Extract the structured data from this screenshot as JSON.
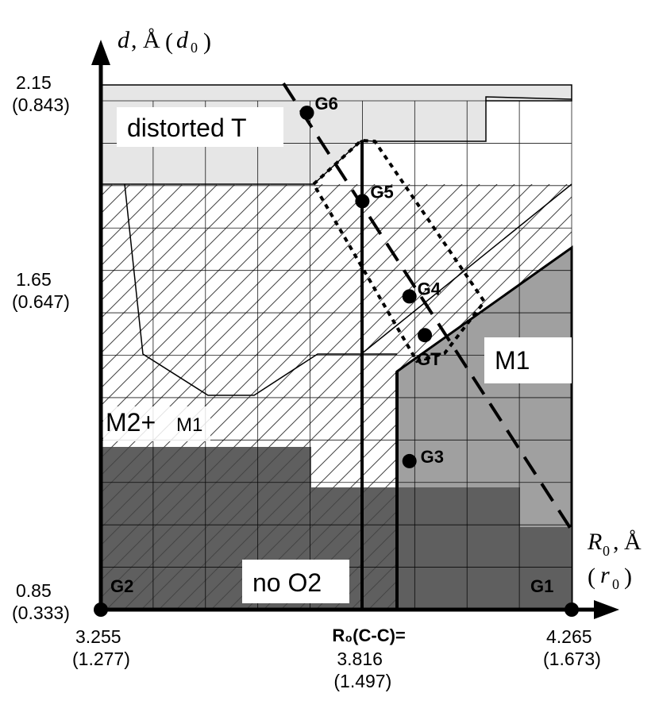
{
  "chart_data": {
    "type": "phase-diagram",
    "x_axis": {
      "label_symbol": "R",
      "label_sub": "0",
      "label_unit": "Å",
      "label_paren_symbol": "r",
      "label_paren_sub": "0",
      "range": [
        3.255,
        4.265
      ],
      "ticks": [
        {
          "value": 3.255,
          "label": "3.255",
          "label2": "(1.277)"
        },
        {
          "value": 3.816,
          "label": "3.816",
          "label2": "(1.497)",
          "prefix": "R₀(C-C)="
        },
        {
          "value": 4.265,
          "label": "4.265",
          "label2": "(1.673)"
        }
      ]
    },
    "y_axis": {
      "label_symbol": "d",
      "label_unit": "Å",
      "label_paren_symbol": "d",
      "label_paren_sub": "0",
      "range": [
        0.85,
        2.15
      ],
      "ticks": [
        {
          "value": 2.15,
          "label": "2.15",
          "label2": "(0.843)"
        },
        {
          "value": 1.65,
          "label": "1.65",
          "label2": "(0.647)"
        },
        {
          "value": 0.85,
          "label": "0.85",
          "label2": "(0.333)"
        }
      ]
    },
    "regions": [
      {
        "name": "distorted T",
        "color": "#e6e6e6"
      },
      {
        "name": "M2+M1",
        "pattern": "hatched"
      },
      {
        "name": "M1",
        "color": "#a0a0a0"
      },
      {
        "name": "no O2",
        "color": "#606060"
      }
    ],
    "points": [
      {
        "name": "G1",
        "x": 4.265,
        "y": 0.85
      },
      {
        "name": "G2",
        "x": 3.255,
        "y": 0.85
      },
      {
        "name": "G3",
        "x": 3.917,
        "y": 1.218
      },
      {
        "name": "G4",
        "x": 3.917,
        "y": 1.626
      },
      {
        "name": "GT",
        "x": 3.95,
        "y": 1.53
      },
      {
        "name": "G5",
        "x": 3.816,
        "y": 1.862
      },
      {
        "name": "G6",
        "x": 3.697,
        "y": 2.081
      }
    ]
  },
  "labels": {
    "distorted_t": "distorted T",
    "m1": "M1",
    "m2m1_main": "M2+",
    "m2m1_small": "M1",
    "no_o2": "no O2",
    "r0cc": "R₀(C-C)="
  }
}
